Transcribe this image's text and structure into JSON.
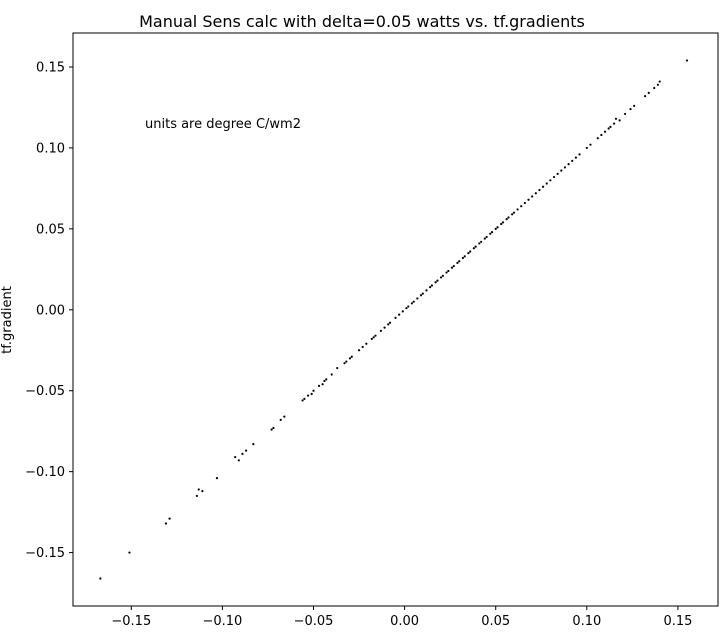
{
  "chart_data": {
    "type": "scatter",
    "title": "Manual Sens calc with  delta=0.05 watts vs. tf.gradients",
    "xlabel": "",
    "ylabel": "tf.gradient",
    "annotation": "units are degree C/wm2",
    "xlim": [
      -0.182,
      0.172
    ],
    "ylim": [
      -0.183,
      0.171
    ],
    "xticks": [
      -0.15,
      -0.1,
      -0.05,
      0.0,
      0.05,
      0.1,
      0.15
    ],
    "xtick_labels": [
      "−0.15",
      "−0.10",
      "−0.05",
      "0.00",
      "0.05",
      "0.10",
      "0.15"
    ],
    "yticks": [
      -0.15,
      -0.1,
      -0.05,
      0.0,
      0.05,
      0.1,
      0.15
    ],
    "ytick_labels": [
      "−0.15",
      "−0.10",
      "−0.05",
      "0.00",
      "0.05",
      "0.10",
      "0.15"
    ],
    "grid": false,
    "marker_color": "#000000",
    "series": [
      {
        "points": [
          [
            -0.167,
            -0.166
          ],
          [
            -0.151,
            -0.15
          ],
          [
            -0.131,
            -0.132
          ],
          [
            -0.129,
            -0.129
          ],
          [
            -0.114,
            -0.115
          ],
          [
            -0.113,
            -0.111
          ],
          [
            -0.111,
            -0.112
          ],
          [
            -0.103,
            -0.104
          ],
          [
            -0.093,
            -0.091
          ],
          [
            -0.091,
            -0.093
          ],
          [
            -0.089,
            -0.089
          ],
          [
            -0.087,
            -0.087
          ],
          [
            -0.083,
            -0.083
          ],
          [
            -0.073,
            -0.074
          ],
          [
            -0.072,
            -0.073
          ],
          [
            -0.068,
            -0.068
          ],
          [
            -0.066,
            -0.066
          ],
          [
            -0.056,
            -0.056
          ],
          [
            -0.055,
            -0.055
          ],
          [
            -0.053,
            -0.053
          ],
          [
            -0.051,
            -0.052
          ],
          [
            -0.05,
            -0.05
          ],
          [
            -0.047,
            -0.047
          ],
          [
            -0.045,
            -0.046
          ],
          [
            -0.044,
            -0.044
          ],
          [
            -0.043,
            -0.043
          ],
          [
            -0.04,
            -0.04
          ],
          [
            -0.037,
            -0.036
          ],
          [
            -0.033,
            -0.033
          ],
          [
            -0.032,
            -0.032
          ],
          [
            -0.03,
            -0.03
          ],
          [
            -0.029,
            -0.029
          ],
          [
            -0.025,
            -0.025
          ],
          [
            -0.023,
            -0.023
          ],
          [
            -0.021,
            -0.021
          ],
          [
            -0.018,
            -0.018
          ],
          [
            -0.017,
            -0.017
          ],
          [
            -0.016,
            -0.016
          ],
          [
            -0.013,
            -0.013
          ],
          [
            -0.011,
            -0.011
          ],
          [
            -0.009,
            -0.009
          ],
          [
            -0.008,
            -0.008
          ],
          [
            -0.005,
            -0.005
          ],
          [
            -0.003,
            -0.003
          ],
          [
            -0.001,
            -0.001
          ],
          [
            0.001,
            0.001
          ],
          [
            0.002,
            0.002
          ],
          [
            0.004,
            0.004
          ],
          [
            0.005,
            0.005
          ],
          [
            0.007,
            0.007
          ],
          [
            0.009,
            0.009
          ],
          [
            0.01,
            0.01
          ],
          [
            0.012,
            0.012
          ],
          [
            0.014,
            0.014
          ],
          [
            0.015,
            0.015
          ],
          [
            0.017,
            0.017
          ],
          [
            0.018,
            0.018
          ],
          [
            0.02,
            0.02
          ],
          [
            0.021,
            0.021
          ],
          [
            0.023,
            0.023
          ],
          [
            0.024,
            0.024
          ],
          [
            0.026,
            0.026
          ],
          [
            0.027,
            0.027
          ],
          [
            0.029,
            0.029
          ],
          [
            0.03,
            0.03
          ],
          [
            0.032,
            0.032
          ],
          [
            0.033,
            0.033
          ],
          [
            0.035,
            0.035
          ],
          [
            0.036,
            0.036
          ],
          [
            0.038,
            0.038
          ],
          [
            0.039,
            0.039
          ],
          [
            0.041,
            0.041
          ],
          [
            0.042,
            0.042
          ],
          [
            0.044,
            0.044
          ],
          [
            0.045,
            0.045
          ],
          [
            0.047,
            0.047
          ],
          [
            0.048,
            0.048
          ],
          [
            0.05,
            0.05
          ],
          [
            0.051,
            0.051
          ],
          [
            0.053,
            0.053
          ],
          [
            0.054,
            0.054
          ],
          [
            0.056,
            0.056
          ],
          [
            0.057,
            0.057
          ],
          [
            0.059,
            0.059
          ],
          [
            0.06,
            0.06
          ],
          [
            0.062,
            0.062
          ],
          [
            0.064,
            0.064
          ],
          [
            0.066,
            0.066
          ],
          [
            0.068,
            0.068
          ],
          [
            0.07,
            0.07
          ],
          [
            0.072,
            0.072
          ],
          [
            0.074,
            0.074
          ],
          [
            0.076,
            0.076
          ],
          [
            0.078,
            0.078
          ],
          [
            0.08,
            0.08
          ],
          [
            0.082,
            0.082
          ],
          [
            0.084,
            0.084
          ],
          [
            0.086,
            0.086
          ],
          [
            0.088,
            0.088
          ],
          [
            0.09,
            0.09
          ],
          [
            0.092,
            0.092
          ],
          [
            0.094,
            0.094
          ],
          [
            0.096,
            0.096
          ],
          [
            0.1,
            0.1
          ],
          [
            0.102,
            0.102
          ],
          [
            0.106,
            0.106
          ],
          [
            0.108,
            0.108
          ],
          [
            0.11,
            0.11
          ],
          [
            0.112,
            0.112
          ],
          [
            0.113,
            0.113
          ],
          [
            0.115,
            0.115
          ],
          [
            0.116,
            0.118
          ],
          [
            0.118,
            0.117
          ],
          [
            0.121,
            0.121
          ],
          [
            0.124,
            0.124
          ],
          [
            0.126,
            0.126
          ],
          [
            0.132,
            0.132
          ],
          [
            0.134,
            0.134
          ],
          [
            0.137,
            0.137
          ],
          [
            0.139,
            0.139
          ],
          [
            0.14,
            0.141
          ],
          [
            0.155,
            0.154
          ]
        ]
      }
    ]
  }
}
